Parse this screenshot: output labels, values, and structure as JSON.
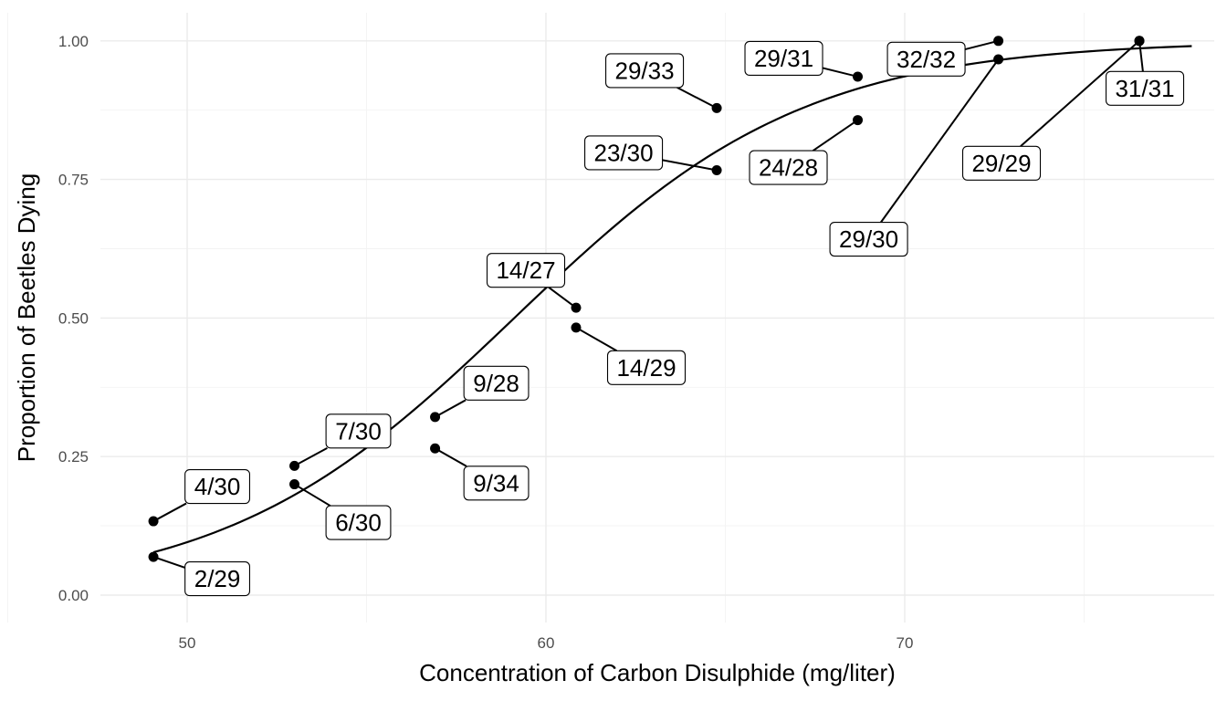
{
  "chart_data": {
    "type": "scatter",
    "title": "",
    "xlabel": "Concentration of Carbon Disulphide (mg/liter)",
    "ylabel": "Proportion of Beetles Dying",
    "xlim": [
      47.6,
      80.9
    ],
    "ylim": [
      -0.05,
      1.05
    ],
    "x_ticks": [
      50,
      60,
      70
    ],
    "x_tick_labels": [
      "50",
      "60",
      "70"
    ],
    "y_ticks": [
      0,
      0.25,
      0.5,
      0.75,
      1.0
    ],
    "y_tick_labels": [
      "0.00",
      "0.25",
      "0.50",
      "0.75",
      "1.00"
    ],
    "grid": true,
    "legend": "none",
    "points": [
      {
        "x": 49.06,
        "y": 0.1333,
        "label": "4/30"
      },
      {
        "x": 49.06,
        "y": 0.069,
        "label": "2/29"
      },
      {
        "x": 52.99,
        "y": 0.2333,
        "label": "7/30"
      },
      {
        "x": 52.99,
        "y": 0.2,
        "label": "6/30"
      },
      {
        "x": 56.91,
        "y": 0.3214,
        "label": "9/28"
      },
      {
        "x": 56.91,
        "y": 0.2647,
        "label": "9/34"
      },
      {
        "x": 60.84,
        "y": 0.5185,
        "label": "14/27"
      },
      {
        "x": 60.84,
        "y": 0.4828,
        "label": "14/29"
      },
      {
        "x": 64.76,
        "y": 0.8788,
        "label": "29/33"
      },
      {
        "x": 64.76,
        "y": 0.7667,
        "label": "23/30"
      },
      {
        "x": 68.69,
        "y": 0.9355,
        "label": "29/31"
      },
      {
        "x": 68.69,
        "y": 0.8571,
        "label": "24/28"
      },
      {
        "x": 72.61,
        "y": 1.0,
        "label": "32/32"
      },
      {
        "x": 72.61,
        "y": 0.9667,
        "label": "29/30"
      },
      {
        "x": 76.54,
        "y": 1.0,
        "label": "31/31"
      },
      {
        "x": 76.54,
        "y": 1.0,
        "label": "29/29"
      }
    ],
    "fit": {
      "type": "logistic",
      "intercept": -14.578,
      "slope": 0.24659,
      "x_range": [
        49.06,
        78.0
      ]
    }
  }
}
